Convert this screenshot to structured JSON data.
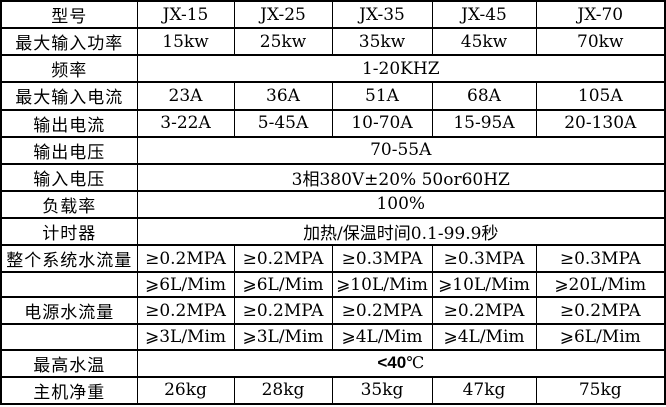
{
  "colors": {
    "accent_green": "#6aa84f",
    "border": "#000000",
    "text": "#000000",
    "background": "#ffffff"
  },
  "table": {
    "rows": [
      {
        "label": "型号",
        "values": [
          "JX-15",
          "JX-25",
          "JX-35",
          "JX-45",
          "JX-70"
        ]
      },
      {
        "label": "最大输入功率",
        "values": [
          "15kw",
          "25kw",
          "35kw",
          "45kw",
          "70kw"
        ]
      },
      {
        "label": "频率",
        "merged": "1-20KHZ"
      },
      {
        "label": "最大输入电流",
        "values": [
          "23A",
          "36A",
          "51A",
          "68A",
          "105A"
        ]
      },
      {
        "label": "输出电流",
        "values": [
          "3-22A",
          "5-45A",
          "10-70A",
          "15-95A",
          "20-130A"
        ]
      },
      {
        "label": "输出电压",
        "merged": "70-55A"
      },
      {
        "label": "输入电压",
        "merged": "3相380V±20% 50or60HZ"
      },
      {
        "label": "负载率",
        "merged": "100%"
      },
      {
        "label": "计时器",
        "merged": "加热/保温时间0.1-99.9秒"
      },
      {
        "label": "整个系统水流量",
        "values": [
          "≥0.2MPA",
          "≥0.2MPA",
          "≥0.3MPA",
          "≥0.3MPA",
          "≥0.3MPA"
        ]
      },
      {
        "label": "",
        "values": [
          "⩾6L/Mim",
          "⩾6L/Mim",
          "⩾10L/Mim",
          "⩾10L/Mim",
          "⩾20L/Mim"
        ]
      },
      {
        "label": "电源水流量",
        "values": [
          "≥0.2MPA",
          "≥0.2MPA",
          "≥0.2MPA",
          "≥0.2MPA",
          "≥0.2MPA"
        ]
      },
      {
        "label": "",
        "values": [
          "⩾3L/Mim",
          "⩾3L/Mim",
          "⩾4L/Mim",
          "⩾4L/Mim",
          "⩾6L/Mim"
        ]
      },
      {
        "label": "最高水温",
        "merged_bold": "<40",
        "merged_unit": "℃",
        "accent": false
      },
      {
        "label": "主机净重",
        "values": [
          "26kg",
          "28kg",
          "35kg",
          "47kg",
          "75kg"
        ],
        "accent": true
      }
    ]
  }
}
